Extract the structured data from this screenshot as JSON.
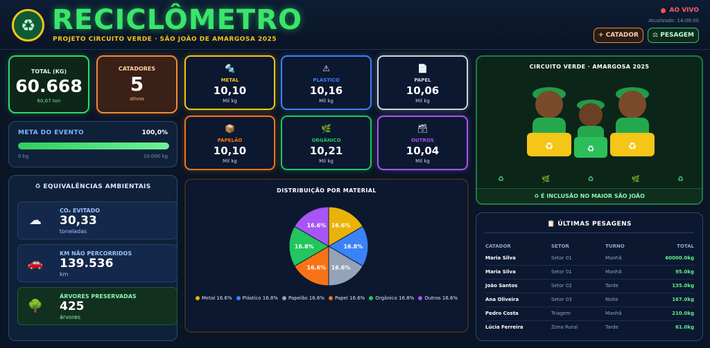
{
  "header": {
    "brand": "RECICLÔMETRO",
    "subtitle": "PROJETO CIRCUITO VERDE · SÃO JOÃO DE AMARGOSA 2025",
    "live": "AO VIVO",
    "updated": "Atualizado: 14:09:00",
    "btn_catador": "+ CATADOR",
    "btn_pesagem": "⚖ PESAGEM"
  },
  "total": {
    "label": "TOTAL (KG)",
    "value": "60.668",
    "sub": "60,67 ton"
  },
  "catadores": {
    "label": "CATADORES",
    "value": "5",
    "sub": "ativos"
  },
  "meta": {
    "label": "META DO EVENTO",
    "pct": "100,0%",
    "progress": 1.0,
    "min": "0 kg",
    "max": "10.000 kg"
  },
  "equiv": {
    "title": "♻ EQUIVALÊNCIAS AMBIENTAIS",
    "items": [
      {
        "label": "CO₂ EVITADO",
        "value": "30,33",
        "unit": "toneladas",
        "icon": "cloud-icon"
      },
      {
        "label": "KM NÃO PERCORRIDOS",
        "value": "139.536",
        "unit": "km",
        "icon": "car-icon"
      },
      {
        "label": "ÁRVORES PRESERVADAS",
        "value": "425",
        "unit": "árvores",
        "icon": "tree-icon"
      }
    ]
  },
  "materials": [
    {
      "label": "METAL",
      "value": "10,10",
      "unit": "Mil kg",
      "color": "#f5c518",
      "icon": "🔩"
    },
    {
      "label": "PLÁSTICO",
      "value": "10,16",
      "unit": "Mil kg",
      "color": "#3b82f6",
      "icon": "⚠"
    },
    {
      "label": "PAPEL",
      "value": "10,06",
      "unit": "Mil kg",
      "color": "#cbd5e1",
      "icon": "📄"
    },
    {
      "label": "PAPELÃO",
      "value": "10,10",
      "unit": "Mil kg",
      "color": "#f97316",
      "icon": "📦"
    },
    {
      "label": "ORGÂNICO",
      "value": "10,21",
      "unit": "Mil kg",
      "color": "#22c55e",
      "icon": "🌿"
    },
    {
      "label": "OUTROS",
      "value": "10,04",
      "unit": "Mil kg",
      "color": "#a855f7",
      "icon": "🗃"
    }
  ],
  "chart_data": {
    "type": "pie",
    "title": "DISTRIBUIÇÃO POR MATERIAL",
    "categories": [
      "Metal",
      "Plástico",
      "Papelão",
      "Papel",
      "Orgânico",
      "Outros"
    ],
    "values": [
      16.6,
      16.8,
      16.6,
      16.6,
      16.8,
      16.6
    ],
    "slice_labels": [
      "16.6%",
      "16.8%",
      "16.6%",
      "16.6%",
      "16.8%",
      "16.6%"
    ],
    "legend_labels": [
      "Metal 16.6%",
      "Plástico 16.8%",
      "Papelão 16.6%",
      "Papel 16.6%",
      "Orgânico 16.8%",
      "Outros 16.6%"
    ],
    "colors": [
      "#eab308",
      "#3b82f6",
      "#94a3b8",
      "#f97316",
      "#22c55e",
      "#a855f7"
    ],
    "legend_position": "bottom"
  },
  "circuito": {
    "title": "CIRCUITO VERDE · AMARGOSA 2025",
    "footer": "♻ É INCLUSÃO NO MAIOR SÃO JOÃO",
    "icons": [
      "♻",
      "🌿",
      "♻",
      "🌿",
      "♻"
    ]
  },
  "pesagens": {
    "title": "📋 ÚLTIMAS PESAGENS",
    "columns": [
      "CATADOR",
      "SETOR",
      "TURNO",
      "TOTAL"
    ],
    "rows": [
      [
        "Maria Silva",
        "Setor 01",
        "Manhã",
        "60000.0kg"
      ],
      [
        "Maria Silva",
        "Setor 01",
        "Manhã",
        "95.0kg"
      ],
      [
        "João Santos",
        "Setor 02",
        "Tarde",
        "135.0kg"
      ],
      [
        "Ana Oliveira",
        "Setor 03",
        "Noite",
        "167.0kg"
      ],
      [
        "Pedro Costa",
        "Triagem",
        "Manhã",
        "210.0kg"
      ],
      [
        "Lúcia Ferreira",
        "Zona Rural",
        "Tarde",
        "61.0kg"
      ]
    ]
  }
}
